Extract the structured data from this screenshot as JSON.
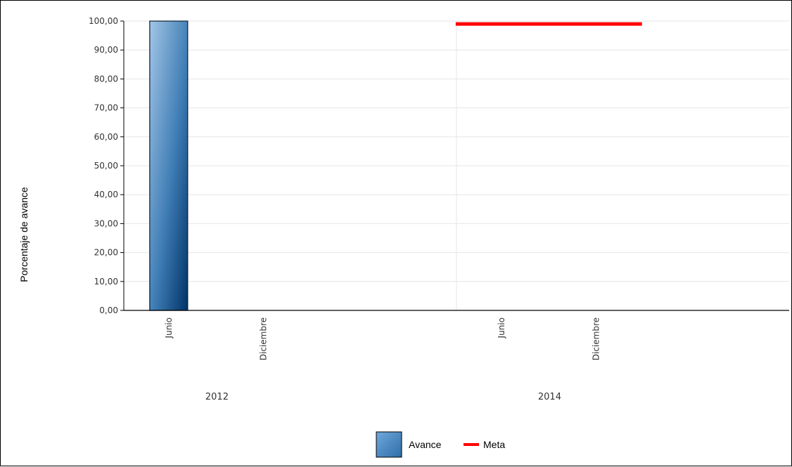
{
  "chart_data": {
    "type": "bar",
    "title": "",
    "ylabel": "Porcentaje de avance",
    "xlabel": "",
    "ylim": [
      0,
      100
    ],
    "y_ticks": [
      "0,00",
      "10,00",
      "20,00",
      "30,00",
      "40,00",
      "50,00",
      "60,00",
      "70,00",
      "80,00",
      "90,00",
      "100,00"
    ],
    "groups": [
      {
        "label": "2012",
        "categories": [
          "Junio",
          "Diciembre"
        ]
      },
      {
        "label": "2014",
        "categories": [
          "Junio",
          "Diciembre"
        ]
      }
    ],
    "series": [
      {
        "name": "Avance",
        "type": "bar",
        "values": [
          100,
          null,
          null,
          null
        ],
        "color": "#2f6ea8"
      },
      {
        "name": "Meta",
        "type": "line",
        "values": [
          null,
          null,
          99,
          99
        ],
        "color": "#ff0000"
      }
    ],
    "grid": true,
    "legend_position": "bottom"
  }
}
